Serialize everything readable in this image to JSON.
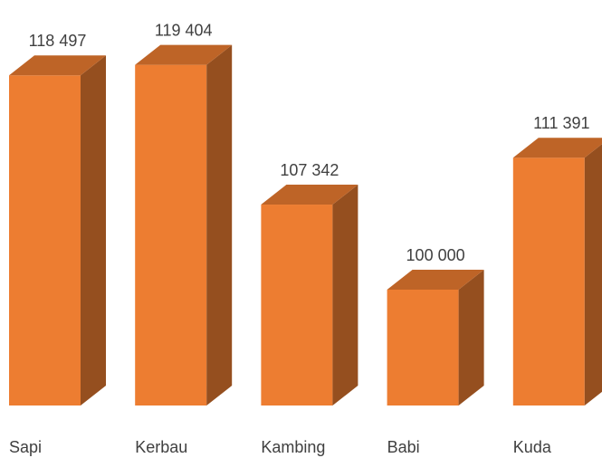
{
  "chart_data": {
    "type": "bar3d",
    "categories": [
      "Sapi",
      "Kerbau",
      "Kambing",
      "Babi",
      "Kuda"
    ],
    "values": [
      118497,
      119404,
      107342,
      100000,
      111391
    ],
    "value_labels": [
      "118 497",
      "119 404",
      "107 342",
      "100 000",
      "111 391"
    ],
    "color": "#ed7d31",
    "ylim": [
      90000,
      120000
    ]
  }
}
